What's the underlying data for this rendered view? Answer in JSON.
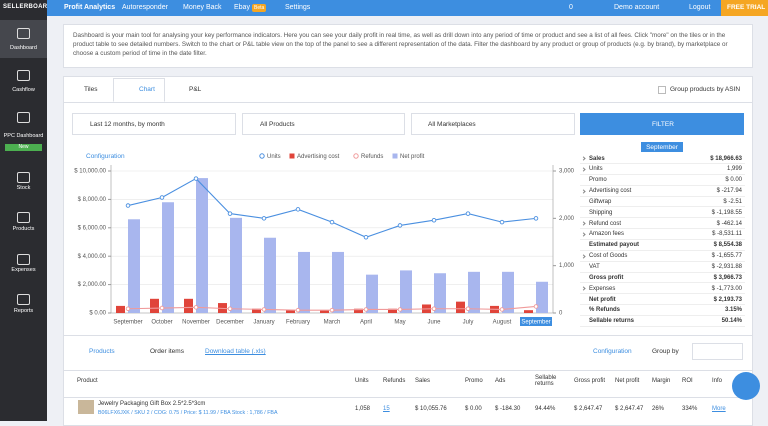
{
  "brand": "SELLERBOARD",
  "sidebar": {
    "items": [
      "Dashboard",
      "Cashflow",
      "PPC Dashboard",
      "Stock",
      "Products",
      "Expenses",
      "Reports"
    ],
    "badge": "New"
  },
  "nav": {
    "items": [
      "Profit Analytics",
      "Autoresponder",
      "Money Back",
      "Ebay",
      "Settings"
    ],
    "beta": "Beta",
    "notifications": "0",
    "account": "Demo account",
    "logout": "Logout",
    "trial": "FREE TRIAL"
  },
  "intro": "Dashboard is your main tool for analysing your key performance indicators. Here you can see your daily profit in real time, as well as drill down into any period of time or product and see a list of all fees. Click \"more\" on the tiles or in the product table to see detailed numbers. Switch to the chart or P&L table view on the top of the panel to see a different representation of the data. Filter the dashboard by any product or group of products (e.g. by brand), by marketplace or choose a custom period of time in the date filter.",
  "view_tabs": [
    "Tiles",
    "Chart",
    "P&L"
  ],
  "group_asin": "Group products by ASIN",
  "filters": {
    "period": "Last 12 months, by month",
    "products": "All Products",
    "marketplaces": "All Marketplaces",
    "button": "FILTER"
  },
  "chart_configuration": "Configuration",
  "chart_data": {
    "type": "bar",
    "categories": [
      "September",
      "October",
      "November",
      "December",
      "January",
      "February",
      "March",
      "April",
      "May",
      "June",
      "July",
      "August",
      "September"
    ],
    "highlight": 12,
    "series": [
      {
        "name": "Units",
        "kind": "line",
        "axis": "y2",
        "color": "#4a8fe0",
        "values": [
          2270,
          2440,
          2840,
          2100,
          2000,
          2190,
          1920,
          1600,
          1850,
          1960,
          2100,
          1920,
          1999
        ]
      },
      {
        "name": "Advertising cost",
        "kind": "bar",
        "color": "#e0443a",
        "values": [
          500,
          1000,
          1000,
          700,
          300,
          200,
          200,
          300,
          300,
          600,
          800,
          500,
          200
        ]
      },
      {
        "name": "Refunds",
        "kind": "line",
        "color": "#f09a9a",
        "values": [
          300,
          350,
          400,
          300,
          250,
          200,
          200,
          250,
          250,
          300,
          300,
          250,
          460
        ]
      },
      {
        "name": "Net profit",
        "kind": "bar",
        "color": "#a8b6ee",
        "values": [
          6600,
          7800,
          9500,
          6700,
          5300,
          4300,
          4300,
          2700,
          3000,
          2800,
          2900,
          2900,
          2200
        ]
      }
    ],
    "ylim": [
      0,
      10000
    ],
    "yticks": [
      {
        "value": 0,
        "label": "$ 0.00"
      },
      {
        "value": 2000,
        "label": "$ 2,000.00"
      },
      {
        "value": 4000,
        "label": "$ 4,000.00"
      },
      {
        "value": 6000,
        "label": "$ 6,000.00"
      },
      {
        "value": 8000,
        "label": "$ 8,000.00"
      },
      {
        "value": 10000,
        "label": "$ 10,000.00"
      }
    ],
    "y2lim": [
      0,
      3000
    ],
    "y2ticks": [
      0,
      {
        "value": 1000,
        "label": "1,000"
      },
      {
        "value": 2000,
        "label": "2,000"
      },
      {
        "value": 3000,
        "label": "3,000"
      }
    ],
    "grid": true
  },
  "summary": {
    "month": "September",
    "rows": [
      {
        "label": "Sales",
        "value": "$ 18,966.63",
        "bold": true,
        "expand": true
      },
      {
        "label": "Units",
        "value": "1,999",
        "expand": true
      },
      {
        "label": "Promo",
        "value": "$ 0.00"
      },
      {
        "label": "Advertising cost",
        "value": "$ -217.94",
        "expand": true
      },
      {
        "label": "Giftwrap",
        "value": "$ -2.51"
      },
      {
        "label": "Shipping",
        "value": "$ -1,198.55"
      },
      {
        "label": "Refund cost",
        "value": "$ -462.14",
        "expand": true
      },
      {
        "label": "Amazon fees",
        "value": "$ -8,531.11",
        "expand": true
      },
      {
        "label": "Estimated payout",
        "value": "$ 8,554.38",
        "bold": true
      },
      {
        "label": "Cost of Goods",
        "value": "$ -1,655.77",
        "expand": true
      },
      {
        "label": "VAT",
        "value": "$ -2,931.88"
      },
      {
        "label": "Gross profit",
        "value": "$ 3,966.73",
        "bold": true
      },
      {
        "label": "Expenses",
        "value": "$ -1,773.00",
        "expand": true
      },
      {
        "label": "Net profit",
        "value": "$ 2,193.73",
        "bold": true
      },
      {
        "label": "% Refunds",
        "value": "3.15%",
        "bold": true
      },
      {
        "label": "Sellable returns",
        "value": "50.14%",
        "bold": true
      }
    ]
  },
  "bottom_tabs": {
    "products": "Products",
    "orders": "Order items",
    "download": "Download table (.xls)",
    "configuration": "Configuration",
    "group_by": "Group by"
  },
  "table": {
    "columns": [
      "Product",
      "Units",
      "Refunds",
      "Sales",
      "Promo",
      "Ads",
      "Sellable returns",
      "Gross profit",
      "Net profit",
      "Margin",
      "ROI",
      "Info"
    ],
    "rows": [
      {
        "product": "Jewelry Packaging Gift Box 2.5*2.5*3cm",
        "details": "B06LFX6JXK / SKU 2 / COG: 0.75 / Price: $ 11.99 / FBA Stock : 1,786 / FBA",
        "cells": [
          "1,058",
          "15",
          "$ 10,055.76",
          "$ 0.00",
          "$ -184.30",
          "94.44%",
          "$ 2,647.47",
          "$ 2,647.47",
          "26%",
          "334%",
          "More"
        ]
      }
    ]
  }
}
